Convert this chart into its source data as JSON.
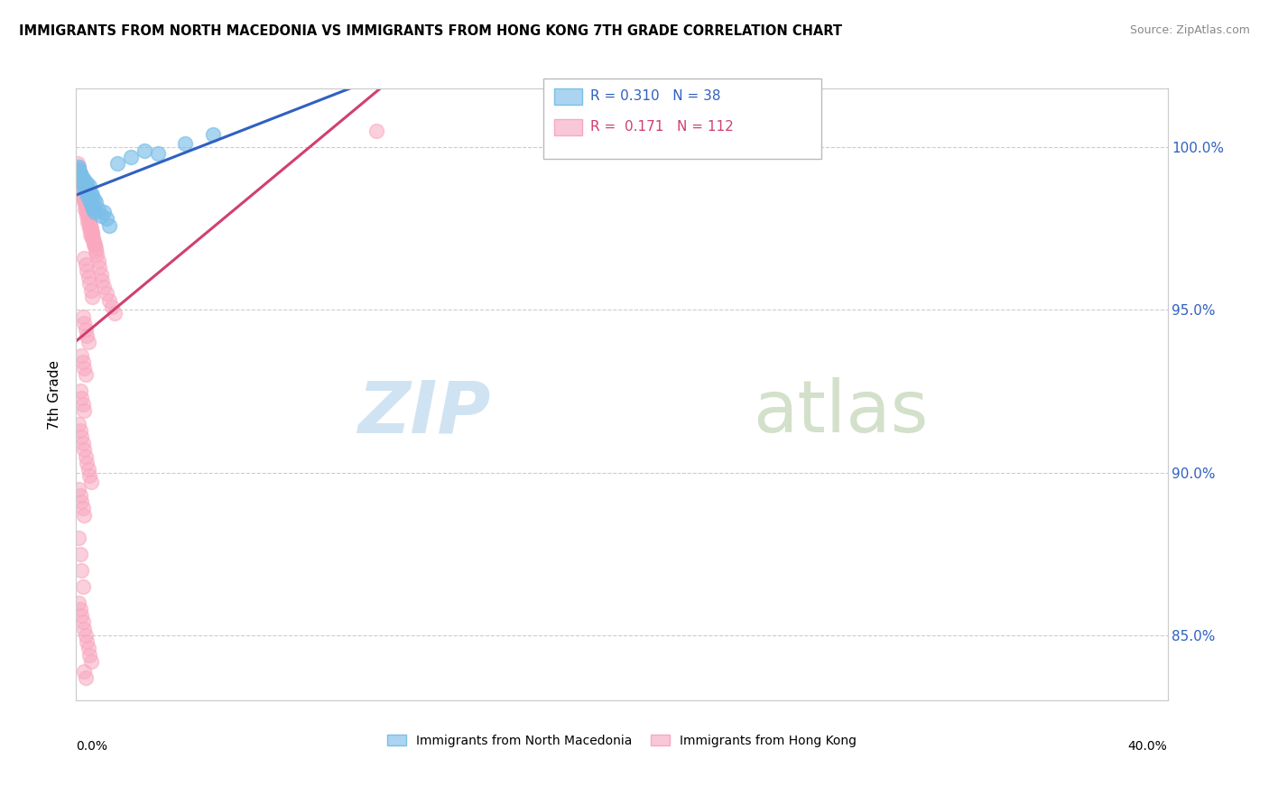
{
  "title": "IMMIGRANTS FROM NORTH MACEDONIA VS IMMIGRANTS FROM HONG KONG 7TH GRADE CORRELATION CHART",
  "source": "Source: ZipAtlas.com",
  "ylabel": "7th Grade",
  "xmin": 0.0,
  "xmax": 40.0,
  "ymin": 83.0,
  "ymax": 101.8,
  "yticks": [
    85.0,
    90.0,
    95.0,
    100.0
  ],
  "ytick_labels": [
    "85.0%",
    "90.0%",
    "95.0%",
    "100.0%"
  ],
  "blue_R": 0.31,
  "blue_N": 38,
  "pink_R": 0.171,
  "pink_N": 112,
  "blue_color": "#7bbfe8",
  "pink_color": "#f9a8c0",
  "blue_line_color": "#3060c0",
  "pink_line_color": "#d04070",
  "blue_label": "Immigrants from North Macedonia",
  "pink_label": "Immigrants from Hong Kong",
  "watermark_zip": "ZIP",
  "watermark_atlas": "atlas",
  "blue_scatter_x": [
    0.05,
    0.1,
    0.15,
    0.2,
    0.25,
    0.3,
    0.35,
    0.4,
    0.45,
    0.5,
    0.55,
    0.6,
    0.65,
    0.7,
    0.8,
    0.9,
    1.0,
    1.1,
    1.2,
    1.5,
    2.0,
    2.5,
    3.0,
    4.0,
    5.0,
    0.08,
    0.12,
    0.18,
    0.22,
    0.28,
    0.32,
    0.38,
    0.42,
    0.48,
    0.52,
    0.58,
    0.62,
    0.68
  ],
  "blue_scatter_y": [
    99.3,
    99.4,
    99.2,
    99.1,
    98.9,
    99.0,
    98.8,
    98.9,
    98.7,
    98.8,
    98.6,
    98.5,
    98.4,
    98.3,
    98.1,
    97.9,
    98.0,
    97.8,
    97.6,
    99.5,
    99.7,
    99.9,
    99.8,
    100.1,
    100.4,
    99.3,
    99.2,
    99.1,
    99.0,
    98.8,
    98.7,
    98.6,
    98.5,
    98.4,
    98.3,
    98.2,
    98.1,
    98.0
  ],
  "pink_scatter_x": [
    0.05,
    0.08,
    0.1,
    0.12,
    0.15,
    0.18,
    0.2,
    0.22,
    0.25,
    0.28,
    0.3,
    0.32,
    0.35,
    0.38,
    0.4,
    0.42,
    0.45,
    0.48,
    0.5,
    0.52,
    0.55,
    0.58,
    0.6,
    0.62,
    0.65,
    0.68,
    0.7,
    0.75,
    0.8,
    0.85,
    0.9,
    0.95,
    1.0,
    1.1,
    1.2,
    1.3,
    1.4,
    0.1,
    0.15,
    0.2,
    0.25,
    0.3,
    0.35,
    0.4,
    0.45,
    0.5,
    0.55,
    0.6,
    0.65,
    0.7,
    0.08,
    0.12,
    0.18,
    0.22,
    0.28,
    0.32,
    0.38,
    0.42,
    0.48,
    0.52,
    0.3,
    0.35,
    0.4,
    0.45,
    0.5,
    0.55,
    0.6,
    0.25,
    0.3,
    0.35,
    0.4,
    0.45,
    0.2,
    0.25,
    0.3,
    0.35,
    0.15,
    0.2,
    0.25,
    0.3,
    0.1,
    0.15,
    0.2,
    0.25,
    0.3,
    0.35,
    0.4,
    0.45,
    0.5,
    0.55,
    0.1,
    0.15,
    0.2,
    0.25,
    0.3,
    0.1,
    0.15,
    0.2,
    0.25,
    11.0,
    0.1,
    0.15,
    0.2,
    0.25,
    0.3,
    0.35,
    0.4,
    0.45,
    0.5,
    0.55,
    0.3,
    0.35
  ],
  "pink_scatter_y": [
    99.5,
    99.4,
    99.3,
    99.2,
    99.1,
    99.0,
    98.9,
    98.8,
    98.7,
    98.6,
    98.5,
    98.4,
    98.3,
    98.2,
    98.1,
    98.0,
    97.9,
    97.8,
    97.7,
    97.6,
    97.5,
    97.4,
    97.3,
    97.2,
    97.1,
    97.0,
    96.9,
    96.7,
    96.5,
    96.3,
    96.1,
    95.9,
    95.7,
    95.5,
    95.3,
    95.1,
    94.9,
    99.2,
    99.0,
    98.8,
    98.6,
    98.4,
    98.2,
    98.0,
    97.8,
    97.6,
    97.4,
    97.2,
    97.0,
    96.8,
    99.1,
    98.9,
    98.7,
    98.5,
    98.3,
    98.1,
    97.9,
    97.7,
    97.5,
    97.3,
    96.6,
    96.4,
    96.2,
    96.0,
    95.8,
    95.6,
    95.4,
    94.8,
    94.6,
    94.4,
    94.2,
    94.0,
    93.6,
    93.4,
    93.2,
    93.0,
    92.5,
    92.3,
    92.1,
    91.9,
    91.5,
    91.3,
    91.1,
    90.9,
    90.7,
    90.5,
    90.3,
    90.1,
    89.9,
    89.7,
    89.5,
    89.3,
    89.1,
    88.9,
    88.7,
    88.0,
    87.5,
    87.0,
    86.5,
    100.5,
    86.0,
    85.8,
    85.6,
    85.4,
    85.2,
    85.0,
    84.8,
    84.6,
    84.4,
    84.2,
    83.9,
    83.7
  ]
}
